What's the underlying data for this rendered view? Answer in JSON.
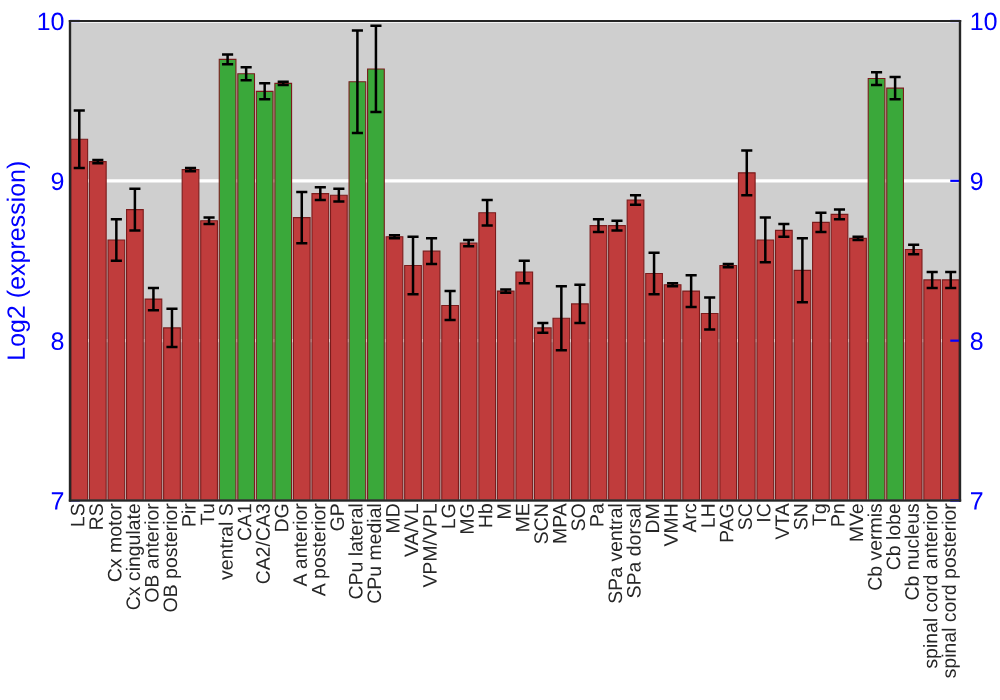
{
  "chart_data": {
    "type": "bar",
    "ylabel": "Log2 (expression)",
    "categories": [
      "LS",
      "RS",
      "Cx motor",
      "Cx cingulate",
      "OB anterior",
      "OB posterior",
      "Pir",
      "Tu",
      "ventral S",
      "CA1",
      "CA2/CA3",
      "DG",
      "A anterior",
      "A posterior",
      "GP",
      "CPu lateral",
      "CPu medial",
      "MD",
      "VA/VL",
      "VPM/VPL",
      "LG",
      "MG",
      "Hb",
      "M",
      "ME",
      "SCN",
      "MPA",
      "SO",
      "Pa",
      "SPa ventral",
      "SPa dorsal",
      "DM",
      "VMH",
      "Arc",
      "LH",
      "PAG",
      "SC",
      "IC",
      "VTA",
      "SN",
      "Tg",
      "Pn",
      "MVe",
      "Cb vermis",
      "Cb lobe",
      "Cb nucleus",
      "spinal cord anterior",
      "spinal cord posterior"
    ],
    "values": [
      9.26,
      9.12,
      8.63,
      8.82,
      8.26,
      8.08,
      9.07,
      8.75,
      9.76,
      9.67,
      9.56,
      9.61,
      8.77,
      8.92,
      8.91,
      9.62,
      9.7,
      8.65,
      8.47,
      8.56,
      8.22,
      8.61,
      8.8,
      8.31,
      8.43,
      8.08,
      8.14,
      8.23,
      8.72,
      8.72,
      8.88,
      8.42,
      8.35,
      8.31,
      8.17,
      8.47,
      9.05,
      8.63,
      8.69,
      8.44,
      8.74,
      8.79,
      8.64,
      9.64,
      9.58,
      8.57,
      8.38,
      8.38
    ],
    "errors": [
      0.18,
      0.01,
      0.13,
      0.13,
      0.07,
      0.12,
      0.01,
      0.02,
      0.03,
      0.04,
      0.05,
      0.01,
      0.16,
      0.04,
      0.04,
      0.32,
      0.27,
      0.01,
      0.18,
      0.08,
      0.09,
      0.02,
      0.08,
      0.01,
      0.07,
      0.03,
      0.2,
      0.12,
      0.04,
      0.03,
      0.03,
      0.13,
      0.01,
      0.1,
      0.1,
      0.01,
      0.14,
      0.14,
      0.04,
      0.2,
      0.06,
      0.03,
      0.01,
      0.04,
      0.07,
      0.03,
      0.05,
      0.05
    ],
    "colors": [
      "#c03c3c",
      "#c03c3c",
      "#c03c3c",
      "#c03c3c",
      "#c03c3c",
      "#c03c3c",
      "#c03c3c",
      "#c03c3c",
      "#3aa83a",
      "#3aa83a",
      "#3aa83a",
      "#3aa83a",
      "#c03c3c",
      "#c03c3c",
      "#c03c3c",
      "#3aa83a",
      "#3aa83a",
      "#c03c3c",
      "#c03c3c",
      "#c03c3c",
      "#c03c3c",
      "#c03c3c",
      "#c03c3c",
      "#c03c3c",
      "#c03c3c",
      "#c03c3c",
      "#c03c3c",
      "#c03c3c",
      "#c03c3c",
      "#c03c3c",
      "#c03c3c",
      "#c03c3c",
      "#c03c3c",
      "#c03c3c",
      "#c03c3c",
      "#c03c3c",
      "#c03c3c",
      "#c03c3c",
      "#c03c3c",
      "#c03c3c",
      "#c03c3c",
      "#c03c3c",
      "#c03c3c",
      "#3aa83a",
      "#3aa83a",
      "#c03c3c",
      "#c03c3c",
      "#c03c3c"
    ],
    "ylim": [
      7,
      10
    ],
    "yticks": [
      7,
      8,
      9,
      10
    ],
    "y2lim": [
      7,
      10
    ],
    "y2ticks": [
      7,
      8,
      9,
      10
    ],
    "grid": "y"
  }
}
